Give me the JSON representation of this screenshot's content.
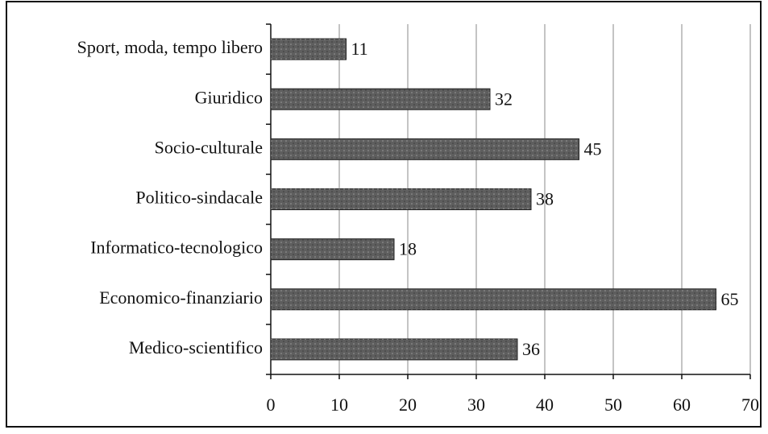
{
  "chart_data": {
    "type": "bar",
    "orientation": "horizontal",
    "categories": [
      "Sport, moda, tempo libero",
      "Giuridico",
      "Socio-culturale",
      "Politico-sindacale",
      "Informatico-tecnologico",
      "Economico-finanziario",
      "Medico-scientifico"
    ],
    "values": [
      11,
      32,
      45,
      38,
      18,
      65,
      36
    ],
    "color": "#5e5e5e",
    "xlim": [
      0,
      70
    ],
    "xticks": [
      0,
      10,
      20,
      30,
      40,
      50,
      60,
      70
    ],
    "grid": true
  }
}
